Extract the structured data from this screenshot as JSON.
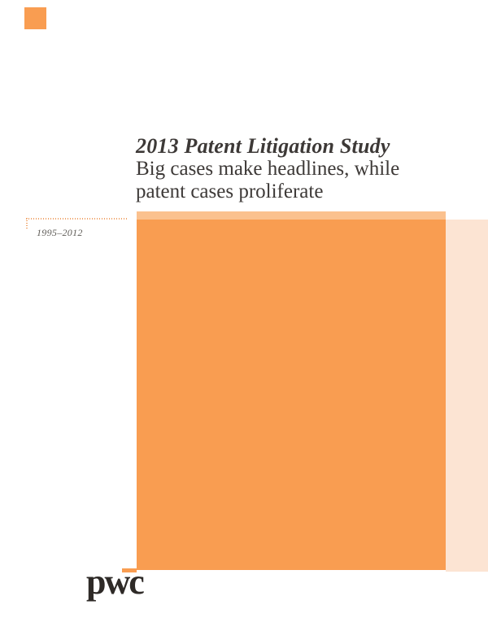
{
  "header": {
    "title": "2013 Patent Litigation Study",
    "subtitle_line1": "Big cases make headlines, while",
    "subtitle_line2": "patent cases proliferate",
    "text_color": "#3d3937"
  },
  "period_note": {
    "label": "1995–2012",
    "text_color": "#5f5c57",
    "dotted_line_color": "#f0a469"
  },
  "artwork": {
    "main_color": "#f99d51",
    "top_strip_color": "#fbc18e",
    "side_band_color": "#fce4d3"
  },
  "brand": {
    "corner_square_color": "#f99d51",
    "logo_text": "pwc",
    "logo_color": "#2e2a27",
    "logo_dash_color": "#f99d51"
  }
}
